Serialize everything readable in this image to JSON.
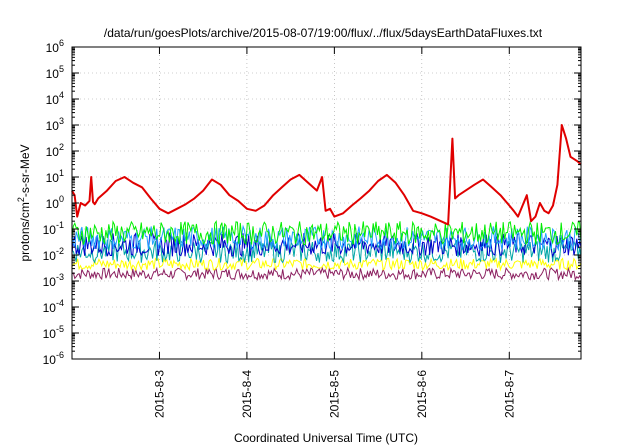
{
  "chart_data": {
    "type": "line",
    "title": "/data/run/goesPlots/archive/2015-08-07/19:00/flux/../flux/5daysEarthDataFluxes.txt",
    "xlabel": "Coordinated Universal Time (UTC)",
    "ylabel_parts": [
      "protons/cm",
      "2",
      "-s-sr-MeV"
    ],
    "xlim": [
      2.0,
      7.82
    ],
    "ylim_log10": [
      -6,
      6
    ],
    "log_y": true,
    "grid": true,
    "x_ticks": [
      {
        "x": 3,
        "label": "2015-8-3"
      },
      {
        "x": 4,
        "label": "2015-8-4"
      },
      {
        "x": 5,
        "label": "2015-8-5"
      },
      {
        "x": 6,
        "label": "2015-8-6"
      },
      {
        "x": 7,
        "label": "2015-8-7"
      }
    ],
    "y_ticks": [
      {
        "exp": -6,
        "base": "10",
        "sup": "-6"
      },
      {
        "exp": -5,
        "base": "10",
        "sup": "-5"
      },
      {
        "exp": -4,
        "base": "10",
        "sup": "-4"
      },
      {
        "exp": -3,
        "base": "10",
        "sup": "-3"
      },
      {
        "exp": -2,
        "base": "10",
        "sup": "-2"
      },
      {
        "exp": -1,
        "base": "10",
        "sup": "-1"
      },
      {
        "exp": 0,
        "base": "10",
        "sup": "0"
      },
      {
        "exp": 1,
        "base": "10",
        "sup": "1"
      },
      {
        "exp": 2,
        "base": "10",
        "sup": "2"
      },
      {
        "exp": 3,
        "base": "10",
        "sup": "3"
      },
      {
        "exp": 4,
        "base": "10",
        "sup": "4"
      },
      {
        "exp": 5,
        "base": "10",
        "sup": "5"
      },
      {
        "exp": 6,
        "base": "10",
        "sup": "6"
      }
    ],
    "series": [
      {
        "color": "#e00000",
        "x": [
          2.0,
          2.03,
          2.06,
          2.1,
          2.15,
          2.2,
          2.22,
          2.24,
          2.26,
          2.3,
          2.4,
          2.5,
          2.6,
          2.7,
          2.8,
          2.9,
          3.0,
          3.1,
          3.2,
          3.3,
          3.4,
          3.5,
          3.6,
          3.7,
          3.8,
          3.9,
          4.0,
          4.1,
          4.2,
          4.3,
          4.4,
          4.5,
          4.6,
          4.7,
          4.8,
          4.86,
          4.9,
          4.95,
          5.0,
          5.1,
          5.2,
          5.3,
          5.4,
          5.5,
          5.6,
          5.7,
          5.8,
          5.9,
          6.0,
          6.1,
          6.3,
          6.35,
          6.38,
          6.42,
          6.5,
          6.6,
          6.7,
          6.8,
          6.9,
          7.0,
          7.05,
          7.1,
          7.2,
          7.25,
          7.3,
          7.35,
          7.4,
          7.45,
          7.5,
          7.55,
          7.6,
          7.65,
          7.7,
          7.78,
          7.82
        ],
        "y": [
          3,
          2,
          0.3,
          1,
          0.8,
          1.2,
          10,
          1.1,
          0.9,
          1.5,
          3,
          7,
          10,
          6,
          4,
          1.5,
          0.6,
          0.4,
          0.6,
          0.9,
          1.5,
          3,
          8,
          5,
          2,
          1.2,
          0.6,
          0.5,
          0.8,
          2,
          4,
          8,
          12,
          6,
          3,
          10,
          0.5,
          0.6,
          0.3,
          0.4,
          0.8,
          1.5,
          3,
          7,
          12,
          6,
          2,
          0.5,
          0.4,
          0.3,
          0.15,
          300,
          1.5,
          2,
          3,
          5,
          8,
          4,
          2,
          0.8,
          0.5,
          0.3,
          2,
          0.2,
          0.3,
          1,
          0.5,
          0.4,
          0.8,
          5,
          1000,
          300,
          60,
          40,
          30
        ]
      },
      {
        "color": "#00ee00",
        "mean": 0.07
      },
      {
        "color": "#1f9fff",
        "mean": 0.045
      },
      {
        "color": "#0000cc",
        "mean": 0.025
      },
      {
        "color": "#00a6a6",
        "mean": 0.014
      },
      {
        "color": "#ffff00",
        "mean": 0.0045
      },
      {
        "color": "#8b2060",
        "mean": 0.0019
      }
    ]
  }
}
